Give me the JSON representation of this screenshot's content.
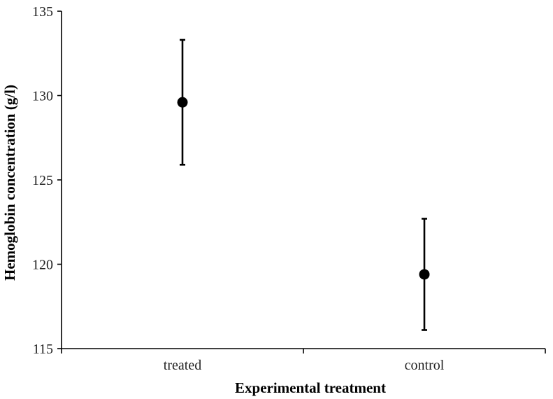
{
  "chart_data": {
    "type": "scatter",
    "categories": [
      "treated",
      "control"
    ],
    "series": [
      {
        "values": [
          129.6,
          119.4
        ],
        "error_upper": [
          133.3,
          122.7
        ],
        "error_lower": [
          125.9,
          116.1
        ],
        "color": "#000000"
      }
    ],
    "xlabel": "Experimental treatment",
    "ylabel": "Hemoglobin concentration (g/l)",
    "ylim": [
      115,
      135
    ],
    "yticks": [
      115,
      120,
      125,
      130,
      135
    ],
    "grid": false,
    "legend": "none"
  }
}
